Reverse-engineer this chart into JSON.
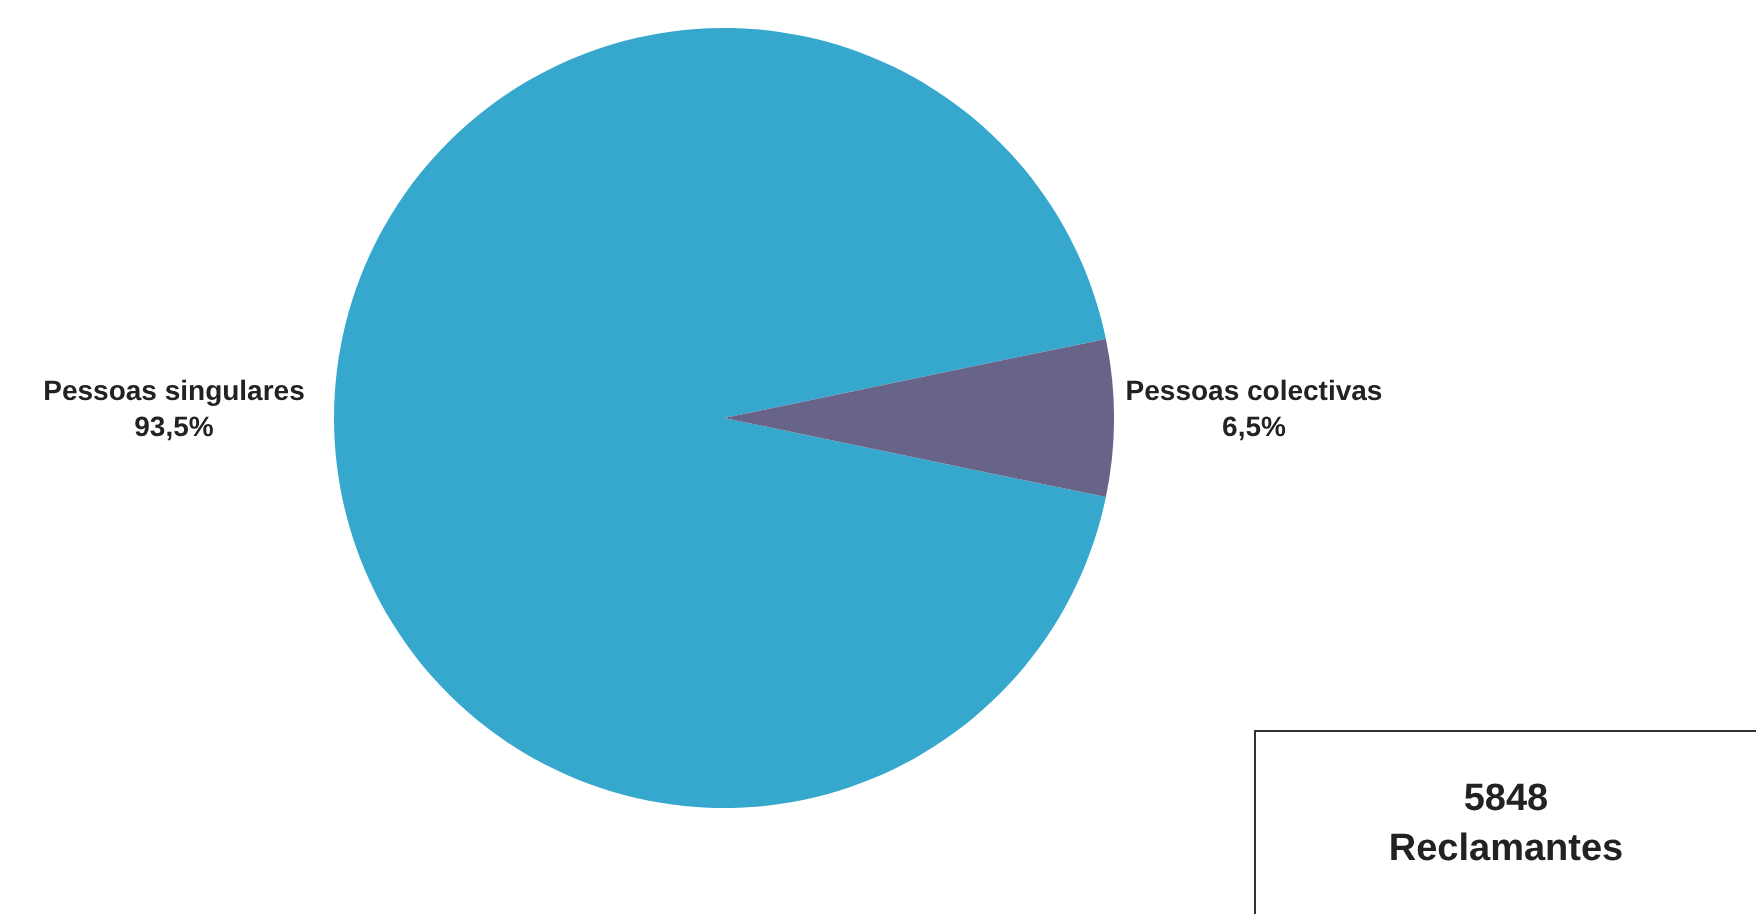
{
  "chart_data": {
    "type": "pie",
    "categories": [
      "Pessoas singulares",
      "Pessoas colectivas"
    ],
    "values": [
      93.5,
      6.5
    ],
    "colors": [
      "#36a7cd",
      "#676389"
    ],
    "value_labels": [
      "93,5%",
      "6,5%"
    ],
    "annotations": [
      "5848\nReclamantes"
    ]
  }
}
